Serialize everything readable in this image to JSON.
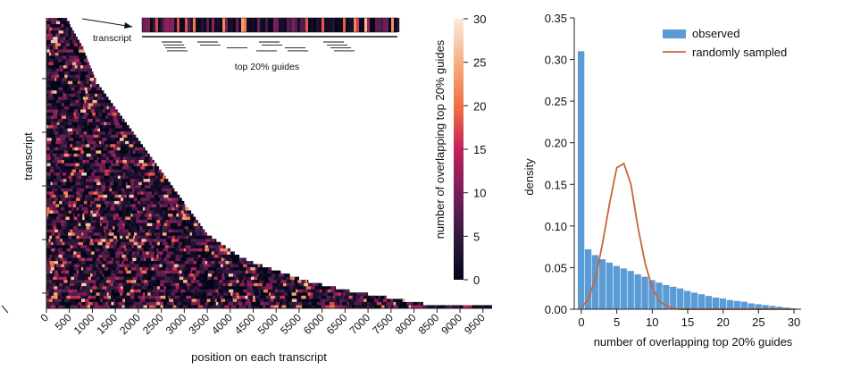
{
  "chart_data": [
    {
      "type": "heatmap",
      "xlabel": "position on each transcript",
      "ylabel": "transcript",
      "x_ticks": [
        0,
        500,
        1000,
        1500,
        2000,
        2500,
        3000,
        3500,
        4000,
        4500,
        5000,
        5500,
        6000,
        6500,
        7000,
        7500,
        8000,
        8500,
        9000,
        9500
      ],
      "xlim": [
        0,
        9700
      ],
      "colorbar": {
        "label": "number of overlapping top 20% guides",
        "ticks": [
          0,
          5,
          10,
          15,
          20,
          25,
          30
        ],
        "range": [
          0,
          30
        ],
        "colormap": "rocket"
      },
      "approx_transcript_lengths_sorted": [
        450,
        500,
        520,
        560,
        600,
        640,
        680,
        720,
        760,
        800,
        820,
        850,
        880,
        900,
        930,
        960,
        990,
        1020,
        1050,
        1080,
        1100,
        1150,
        1200,
        1250,
        1300,
        1350,
        1400,
        1450,
        1500,
        1550,
        1600,
        1650,
        1700,
        1750,
        1800,
        1850,
        1900,
        1950,
        2000,
        2050,
        2100,
        2150,
        2200,
        2250,
        2300,
        2350,
        2400,
        2450,
        2500,
        2550,
        2600,
        2650,
        2700,
        2750,
        2800,
        2850,
        2900,
        2950,
        3000,
        3050,
        3100,
        3150,
        3200,
        3250,
        3300,
        3350,
        3400,
        3450,
        3500,
        3600,
        3700,
        3800,
        3900,
        4000,
        4100,
        4200,
        4350,
        4500,
        4700,
        4900,
        5100,
        5300,
        5500,
        5700,
        6000,
        6300,
        6600,
        7000,
        7400,
        7800,
        8200,
        9700
      ],
      "inset": {
        "transcript_label": "transcript",
        "guides_label": "top 20% guides"
      }
    },
    {
      "type": "bar",
      "xlabel": "number of overlapping top 20% guides",
      "ylabel": "density",
      "xlim": [
        -1,
        31
      ],
      "ylim": [
        0,
        0.35
      ],
      "x_ticks": [
        0,
        5,
        10,
        15,
        20,
        25,
        30
      ],
      "y_ticks": [
        0.0,
        0.05,
        0.1,
        0.15,
        0.2,
        0.25,
        0.3,
        0.35
      ],
      "legend_position": "top-right",
      "series": [
        {
          "name": "observed",
          "kind": "histogram",
          "color": "#5b9bd5",
          "x": [
            0,
            1,
            2,
            3,
            4,
            5,
            6,
            7,
            8,
            9,
            10,
            11,
            12,
            13,
            14,
            15,
            16,
            17,
            18,
            19,
            20,
            21,
            22,
            23,
            24,
            25,
            26,
            27,
            28,
            29,
            30
          ],
          "values": [
            0.31,
            0.072,
            0.065,
            0.06,
            0.056,
            0.052,
            0.049,
            0.046,
            0.042,
            0.039,
            0.035,
            0.032,
            0.029,
            0.027,
            0.025,
            0.022,
            0.02,
            0.018,
            0.016,
            0.014,
            0.013,
            0.011,
            0.01,
            0.009,
            0.007,
            0.006,
            0.005,
            0.004,
            0.003,
            0.002,
            0.001
          ]
        },
        {
          "name": "randomly sampled",
          "kind": "line",
          "color": "#c8643b",
          "x": [
            0,
            1,
            2,
            3,
            4,
            5,
            6,
            7,
            8,
            9,
            10,
            11,
            12,
            13,
            14,
            15,
            16,
            17,
            18,
            19,
            20,
            21,
            22,
            23,
            24,
            25,
            26,
            27,
            28,
            29,
            30
          ],
          "values": [
            0.002,
            0.012,
            0.037,
            0.08,
            0.128,
            0.17,
            0.175,
            0.15,
            0.098,
            0.055,
            0.026,
            0.01,
            0.004,
            0.001,
            0.0,
            0.0,
            0.0,
            0.0,
            0.0,
            0.0,
            0.0,
            0.0,
            0.0,
            0.0,
            0.0,
            0.0,
            0.0,
            0.0,
            0.0,
            0.0,
            0.0
          ]
        }
      ]
    }
  ]
}
